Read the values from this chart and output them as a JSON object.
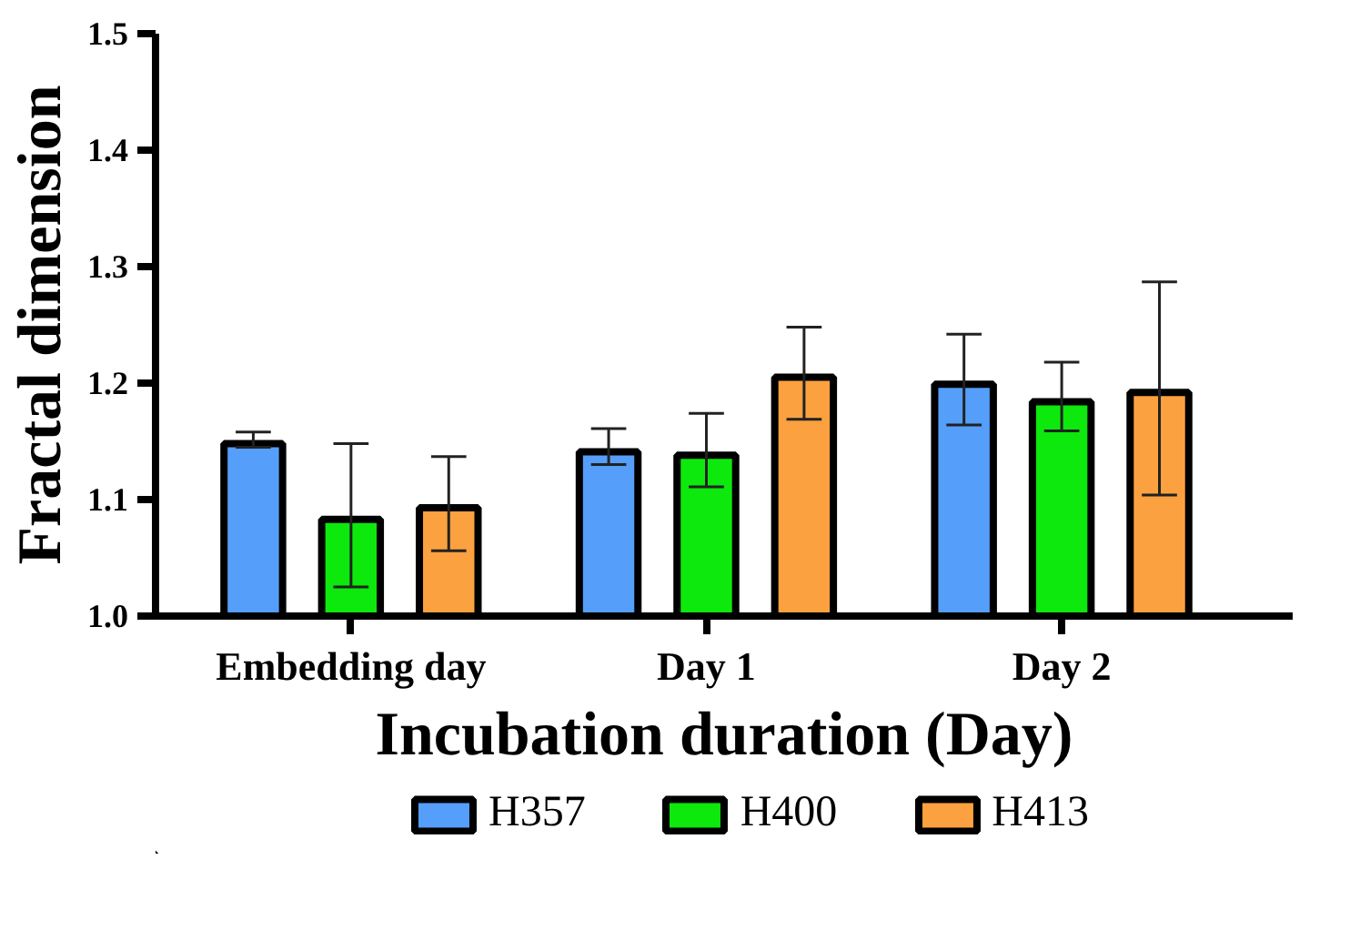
{
  "chart_data": {
    "type": "bar",
    "xlabel": "Incubation duration (Day)",
    "ylabel": "Fractal dimension",
    "categories": [
      "Embedding day",
      "Day 1",
      "Day 2"
    ],
    "series": [
      {
        "name": "H357",
        "color": "#559ef9",
        "values": [
          1.148,
          1.141,
          1.199
        ],
        "errors": [
          [
            1.145,
            1.158
          ],
          [
            1.13,
            1.161
          ],
          [
            1.164,
            1.242
          ]
        ]
      },
      {
        "name": "H400",
        "color": "#0de80d",
        "values": [
          1.083,
          1.138,
          1.184
        ],
        "errors": [
          [
            1.025,
            1.148
          ],
          [
            1.111,
            1.174
          ],
          [
            1.159,
            1.218
          ]
        ]
      },
      {
        "name": "H413",
        "color": "#fba13f",
        "values": [
          1.093,
          1.205,
          1.192
        ],
        "errors": [
          [
            1.056,
            1.137
          ],
          [
            1.169,
            1.248
          ],
          [
            1.104,
            1.287
          ]
        ]
      }
    ],
    "ylim": [
      1.0,
      1.5
    ],
    "yticks": [
      {
        "value": 1.0,
        "label": "1.0"
      },
      1.1,
      1.2,
      1.3,
      1.4,
      1.5
    ],
    "grid": false,
    "legend": "bottom"
  }
}
